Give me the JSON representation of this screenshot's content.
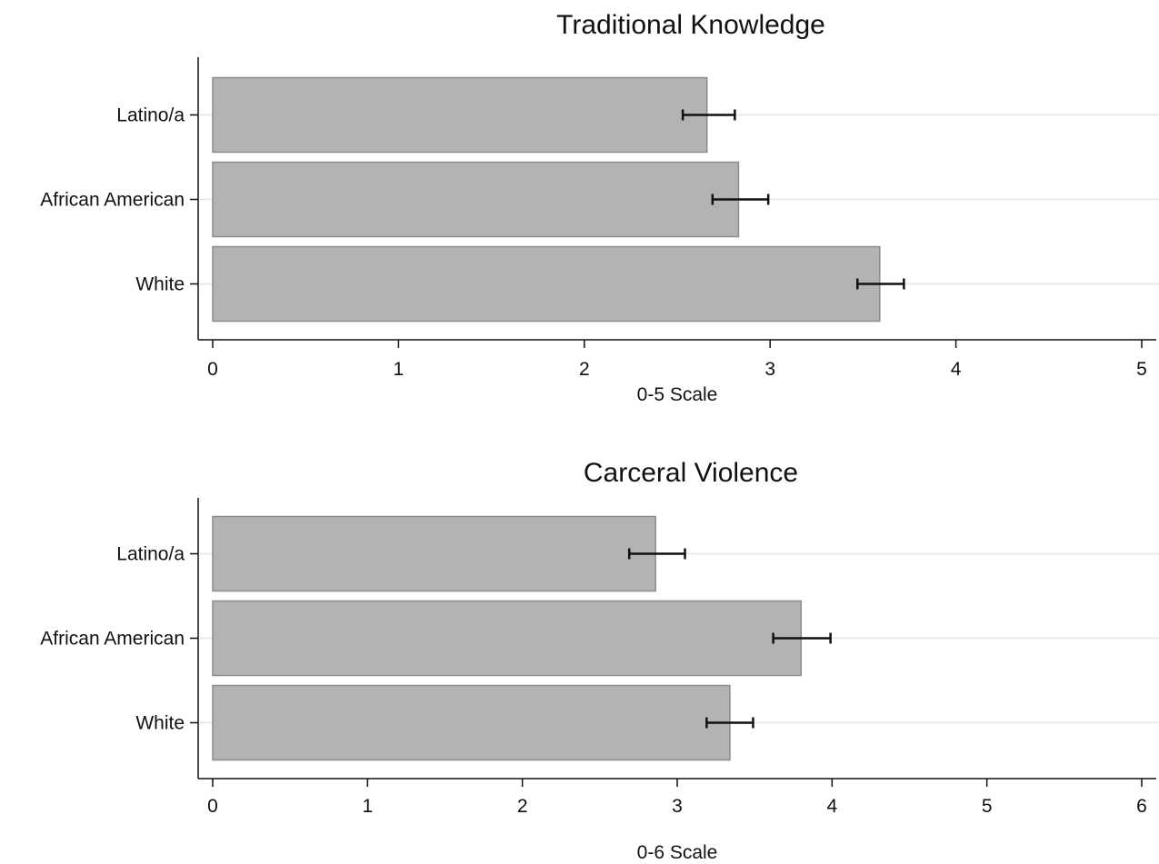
{
  "chart_data": [
    {
      "type": "bar",
      "orientation": "horizontal",
      "title": "Traditional Knowledge",
      "xlabel": "0-5 Scale",
      "ylabel": "",
      "categories": [
        "Latino/a",
        "African American",
        "White"
      ],
      "values": [
        2.66,
        2.83,
        3.59
      ],
      "error_low": [
        2.53,
        2.69,
        3.47
      ],
      "error_high": [
        2.81,
        2.99,
        3.72
      ],
      "xlim": [
        0,
        5
      ],
      "xticks": [
        "0",
        "1",
        "2",
        "3",
        "4",
        "5"
      ],
      "grid": "horizontal-at-categories",
      "legend": "none",
      "bar_color": "#b3b3b3",
      "bar_edge_color": "#8c8c8c",
      "errorbar_color": "#111111"
    },
    {
      "type": "bar",
      "orientation": "horizontal",
      "title": "Carceral Violence",
      "xlabel": "0-6 Scale",
      "ylabel": "",
      "categories": [
        "Latino/a",
        "African American",
        "White"
      ],
      "values": [
        2.86,
        3.8,
        3.34
      ],
      "error_low": [
        2.69,
        3.62,
        3.19
      ],
      "error_high": [
        3.05,
        3.99,
        3.49
      ],
      "xlim": [
        0,
        6
      ],
      "xticks": [
        "0",
        "1",
        "2",
        "3",
        "4",
        "5",
        "6"
      ],
      "grid": "horizontal-at-categories",
      "legend": "none",
      "bar_color": "#b3b3b3",
      "bar_edge_color": "#8c8c8c",
      "errorbar_color": "#111111"
    }
  ]
}
